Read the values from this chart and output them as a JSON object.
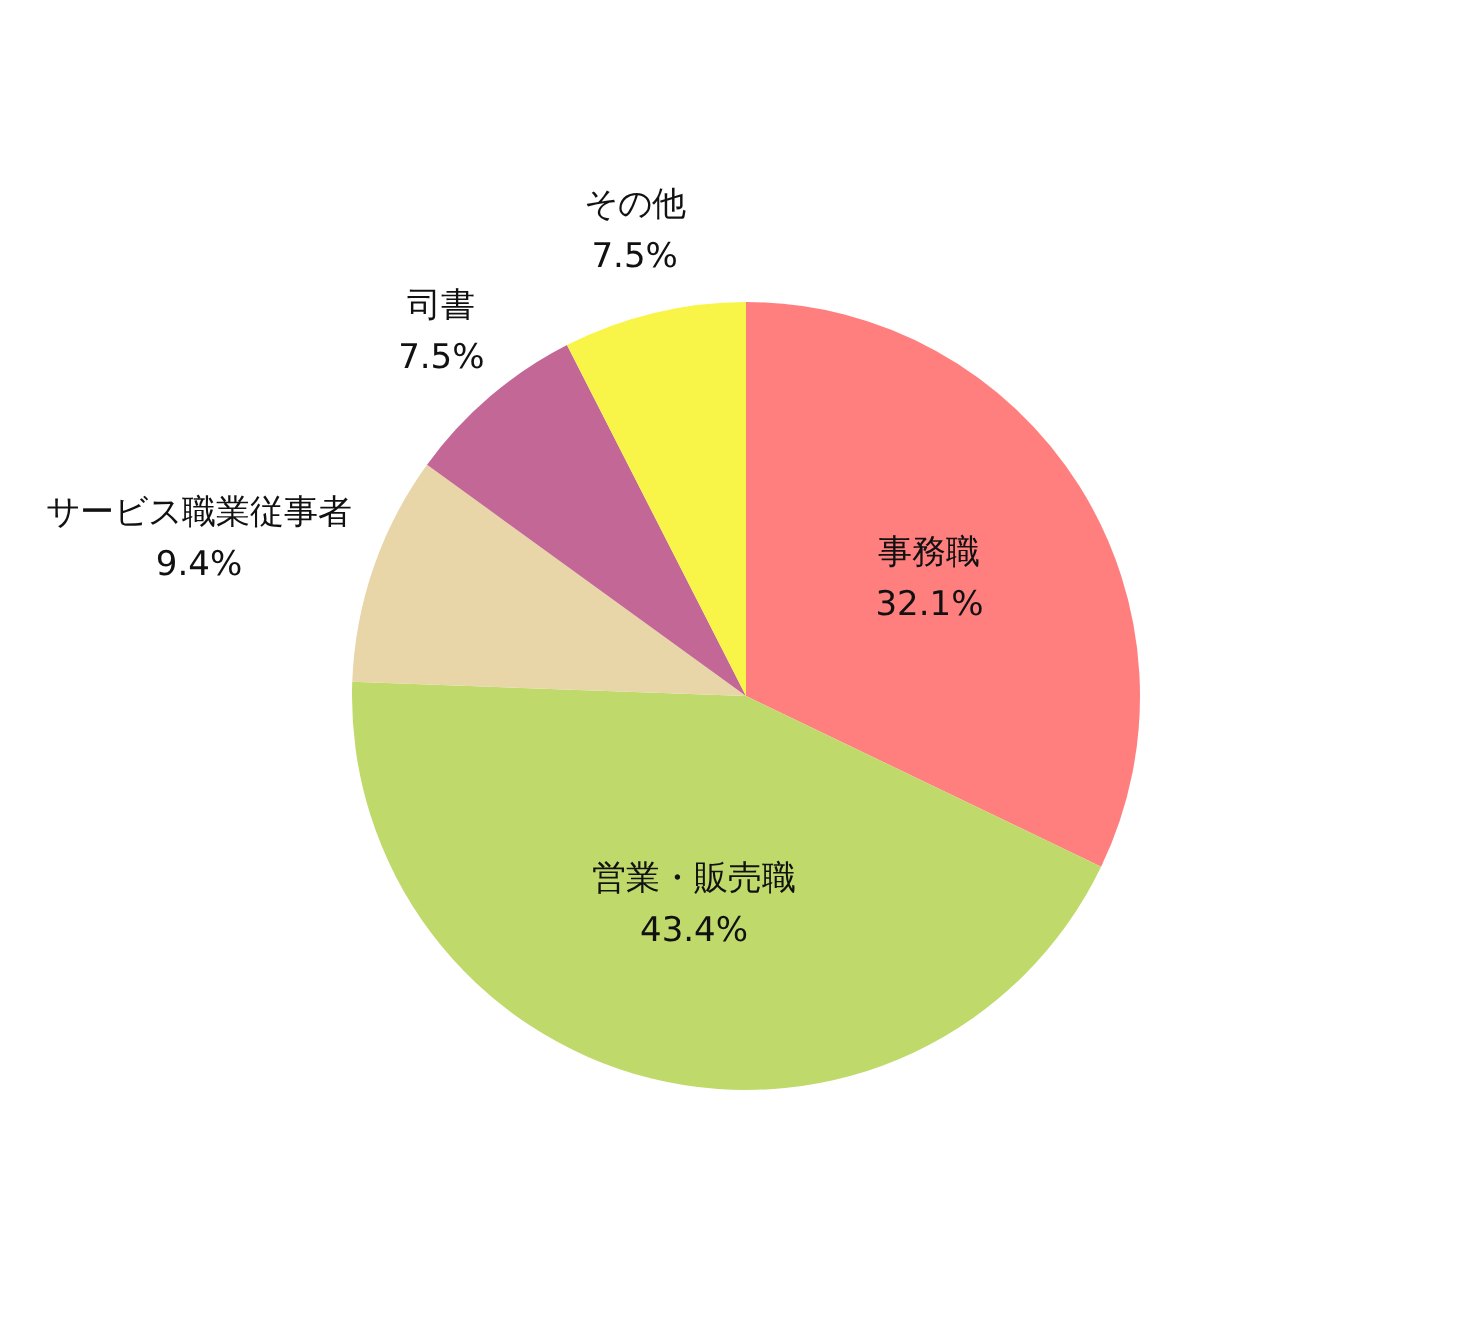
{
  "chart_data": {
    "type": "pie",
    "categories": [
      "事務職",
      "営業・販売職",
      "サービス職業従事者",
      "司書",
      "その他"
    ],
    "values": [
      32.1,
      43.4,
      9.4,
      7.5,
      7.5
    ],
    "value_labels": [
      "32.1%",
      "43.4%",
      "9.4%",
      "7.5%",
      "7.5%"
    ],
    "colors": [
      "#ff7f7f",
      "#bfd96a",
      "#e8d5a8",
      "#c36797",
      "#f8f548"
    ],
    "legend": false
  }
}
